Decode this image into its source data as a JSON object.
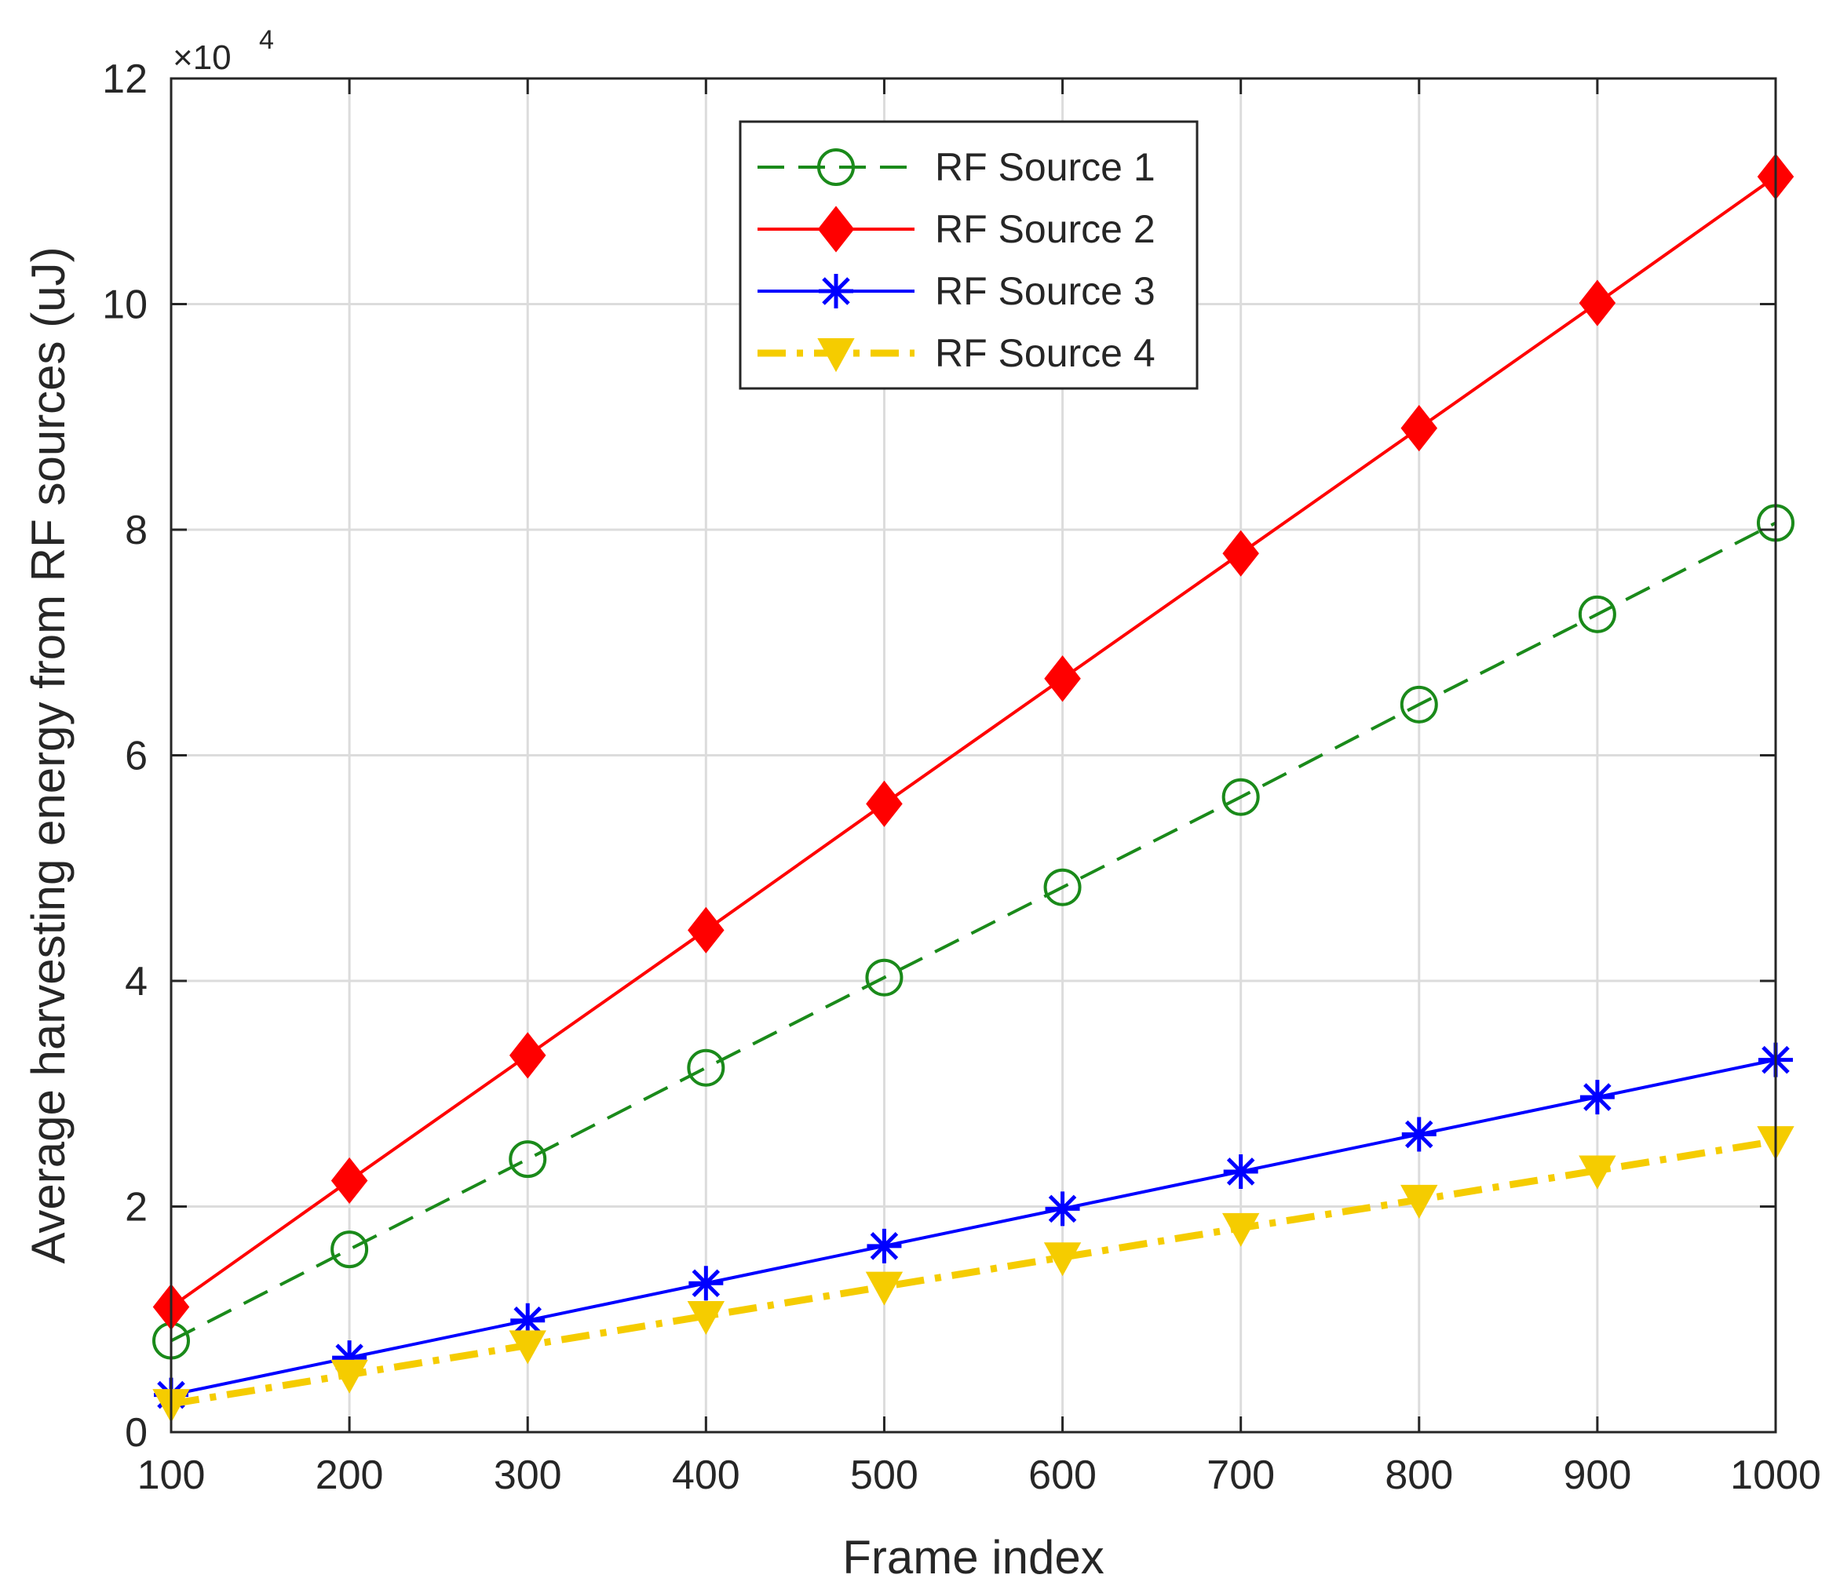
{
  "chart_data": {
    "type": "line",
    "title": "",
    "xlabel": "Frame index",
    "ylabel": "Average harvesting energy from RF sources (uJ)",
    "y_exponent_label": {
      "base": "×10",
      "power": "4"
    },
    "xlim": [
      100,
      1000
    ],
    "ylim": [
      0,
      120000
    ],
    "x_ticks": [
      100,
      200,
      300,
      400,
      500,
      600,
      700,
      800,
      900,
      1000
    ],
    "y_ticks": [
      0,
      20000,
      40000,
      60000,
      80000,
      100000,
      120000
    ],
    "y_tick_labels": [
      "0",
      "2",
      "4",
      "6",
      "8",
      "10",
      "12"
    ],
    "grid": true,
    "legend_position": "top-center",
    "x": [
      100,
      200,
      300,
      400,
      500,
      600,
      700,
      800,
      900,
      1000
    ],
    "series": [
      {
        "name": "RF Source 1",
        "color": "#1a8a1a",
        "dash": "dashed",
        "marker": "circle",
        "values": [
          8100,
          16200,
          24200,
          32300,
          40300,
          48300,
          56300,
          64500,
          72500,
          80600
        ]
      },
      {
        "name": "RF Source 2",
        "color": "#ff0000",
        "dash": "solid",
        "marker": "diamond",
        "values": [
          11100,
          22300,
          33400,
          44500,
          55700,
          66800,
          77900,
          89000,
          100100,
          111300
        ]
      },
      {
        "name": "RF Source 3",
        "color": "#0000ff",
        "dash": "solid",
        "marker": "asterisk",
        "values": [
          3300,
          6600,
          9900,
          13200,
          16500,
          19800,
          23100,
          26400,
          29700,
          33000
        ]
      },
      {
        "name": "RF Source 4",
        "color": "#f5cc00",
        "dash": "dashdot",
        "marker": "triangle-down",
        "values": [
          2500,
          5100,
          7700,
          10300,
          12900,
          15500,
          18100,
          20600,
          23200,
          25800
        ]
      }
    ]
  }
}
